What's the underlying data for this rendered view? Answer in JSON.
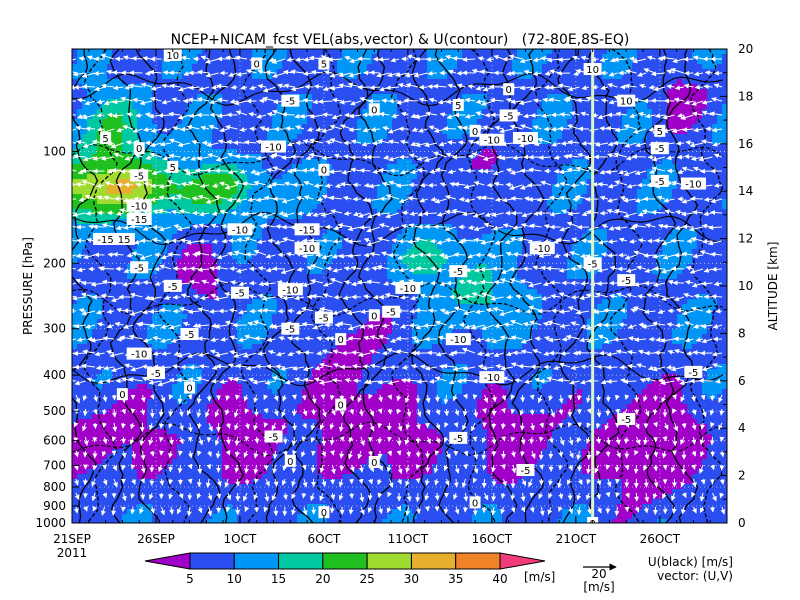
{
  "chart_data": {
    "type": "heatmap",
    "title": "NCEP+NICAM_fcst VEL(abs,vector) & U(contour)   (72-80E,8S-EQ)",
    "ylabel_left": "PRESSURE [hPa]",
    "ylabel_right": "ALTITUDE [km]",
    "x_tick_labels": [
      "21SEP",
      "26SEP",
      "1OCT",
      "6OCT",
      "11OCT",
      "16OCT",
      "21OCT",
      "26OCT"
    ],
    "x_year_label": "2011",
    "x_range": [
      "2011-09-21",
      "2011-10-30"
    ],
    "forecast_start_line": "2011-10-22",
    "y_left_scale": "log",
    "y_left_range": [
      1000,
      53
    ],
    "y_left_ticks": [
      {
        "v": 100,
        "label": "100"
      },
      {
        "v": 200,
        "label": "200"
      },
      {
        "v": 300,
        "label": "300"
      },
      {
        "v": 400,
        "label": "400"
      },
      {
        "v": 500,
        "label": "500"
      },
      {
        "v": 600,
        "label": "600"
      },
      {
        "v": 700,
        "label": "700"
      },
      {
        "v": 800,
        "label": "800"
      },
      {
        "v": 900,
        "label": "900"
      },
      {
        "v": 1000,
        "label": "1000"
      }
    ],
    "y_right_range": [
      0,
      20
    ],
    "y_right_ticks": [
      "0",
      "2",
      "4",
      "6",
      "8",
      "10",
      "12",
      "14",
      "16",
      "18",
      "20"
    ],
    "colorbar": {
      "unit": "[m/s]",
      "tick_labels": [
        "5",
        "10",
        "15",
        "20",
        "25",
        "30",
        "35",
        "40"
      ],
      "colors": [
        "#a000c8",
        "#2b4ef0",
        "#0096f5",
        "#00c8a0",
        "#20c020",
        "#a0dc30",
        "#e6af2d",
        "#f08228",
        "#f03c78"
      ]
    },
    "contour_labels": [
      {
        "x": "2011-09-27",
        "p": 55,
        "label": "10"
      },
      {
        "x": "2011-09-23",
        "p": 92,
        "label": "5"
      },
      {
        "x": "2011-09-25",
        "p": 98,
        "label": "0"
      },
      {
        "x": "2011-09-25",
        "p": 116,
        "label": "-5"
      },
      {
        "x": "2011-09-25",
        "p": 140,
        "label": "-10"
      },
      {
        "x": "2011-09-25",
        "p": 152,
        "label": "-15"
      },
      {
        "x": "2011-09-24",
        "p": 172,
        "label": "-15"
      },
      {
        "x": "2011-09-23",
        "p": 172,
        "label": "-15"
      },
      {
        "x": "2011-09-27",
        "p": 110,
        "label": "5"
      },
      {
        "x": "2011-10-02",
        "p": 58,
        "label": "0"
      },
      {
        "x": "2011-10-04",
        "p": 73,
        "label": "-5"
      },
      {
        "x": "2011-10-03",
        "p": 97,
        "label": "-10"
      },
      {
        "x": "2011-10-01",
        "p": 162,
        "label": "-10"
      },
      {
        "x": "2011-10-06",
        "p": 58,
        "label": "5"
      },
      {
        "x": "2011-10-05",
        "p": 162,
        "label": "-15"
      },
      {
        "x": "2011-10-06",
        "p": 112,
        "label": "0"
      },
      {
        "x": "2011-10-09",
        "p": 77,
        "label": "0"
      },
      {
        "x": "2011-10-14",
        "p": 75,
        "label": "5"
      },
      {
        "x": "2011-10-15",
        "p": 88,
        "label": "0"
      },
      {
        "x": "2011-10-16",
        "p": 93,
        "label": "-10"
      },
      {
        "x": "2011-10-17",
        "p": 68,
        "label": "0"
      },
      {
        "x": "2011-10-17",
        "p": 80,
        "label": "-5"
      },
      {
        "x": "2011-10-18",
        "p": 92,
        "label": "-10"
      },
      {
        "x": "2011-10-22",
        "p": 60,
        "label": "10"
      },
      {
        "x": "2011-10-24",
        "p": 73,
        "label": "10"
      },
      {
        "x": "2011-10-26",
        "p": 88,
        "label": "5"
      },
      {
        "x": "2011-10-26",
        "p": 98,
        "label": "-5"
      },
      {
        "x": "2011-10-26",
        "p": 120,
        "label": "-5"
      },
      {
        "x": "2011-10-28",
        "p": 122,
        "label": "-10"
      },
      {
        "x": "2011-10-05",
        "p": 182,
        "label": "-10"
      },
      {
        "x": "2011-09-25",
        "p": 205,
        "label": "-5"
      },
      {
        "x": "2011-09-27",
        "p": 230,
        "label": "-5"
      },
      {
        "x": "2011-10-01",
        "p": 240,
        "label": "-5"
      },
      {
        "x": "2011-10-04",
        "p": 235,
        "label": "-10"
      },
      {
        "x": "2011-10-11",
        "p": 233,
        "label": "-10"
      },
      {
        "x": "2011-10-14",
        "p": 210,
        "label": "-5"
      },
      {
        "x": "2011-10-19",
        "p": 182,
        "label": "-10"
      },
      {
        "x": "2011-10-22",
        "p": 200,
        "label": "-5"
      },
      {
        "x": "2011-10-24",
        "p": 222,
        "label": "-5"
      },
      {
        "x": "2011-09-25",
        "p": 350,
        "label": "-10"
      },
      {
        "x": "2011-09-28",
        "p": 310,
        "label": "-5"
      },
      {
        "x": "2011-10-04",
        "p": 300,
        "label": "-5"
      },
      {
        "x": "2011-10-06",
        "p": 280,
        "label": "-5"
      },
      {
        "x": "2011-10-09",
        "p": 276,
        "label": "0"
      },
      {
        "x": "2011-10-10",
        "p": 270,
        "label": "-5"
      },
      {
        "x": "2011-10-07",
        "p": 320,
        "label": "0"
      },
      {
        "x": "2011-10-14",
        "p": 320,
        "label": "-10"
      },
      {
        "x": "2011-10-16",
        "p": 405,
        "label": "-10"
      },
      {
        "x": "2011-09-26",
        "p": 395,
        "label": "-5"
      },
      {
        "x": "2011-09-24",
        "p": 450,
        "label": "0"
      },
      {
        "x": "2011-09-28",
        "p": 432,
        "label": "0"
      },
      {
        "x": "2011-10-07",
        "p": 480,
        "label": "0"
      },
      {
        "x": "2011-10-03",
        "p": 585,
        "label": "-5"
      },
      {
        "x": "2011-10-04",
        "p": 680,
        "label": "0"
      },
      {
        "x": "2011-10-09",
        "p": 685,
        "label": "0"
      },
      {
        "x": "2011-10-14",
        "p": 590,
        "label": "-5"
      },
      {
        "x": "2011-10-15",
        "p": 880,
        "label": "0"
      },
      {
        "x": "2011-10-18",
        "p": 720,
        "label": "-5"
      },
      {
        "x": "2011-10-24",
        "p": 525,
        "label": "-5"
      },
      {
        "x": "2011-10-28",
        "p": 392,
        "label": "-5"
      },
      {
        "x": "2011-10-06",
        "p": 935,
        "label": "0"
      },
      {
        "x": "2011-10-22",
        "p": 1000,
        "label": "0"
      }
    ]
  },
  "vector_ref": {
    "value": "20",
    "unit": "[m/s]"
  },
  "legend_text": {
    "line1": "U(black) [m/s]",
    "line2": "vector: (U,V)"
  }
}
